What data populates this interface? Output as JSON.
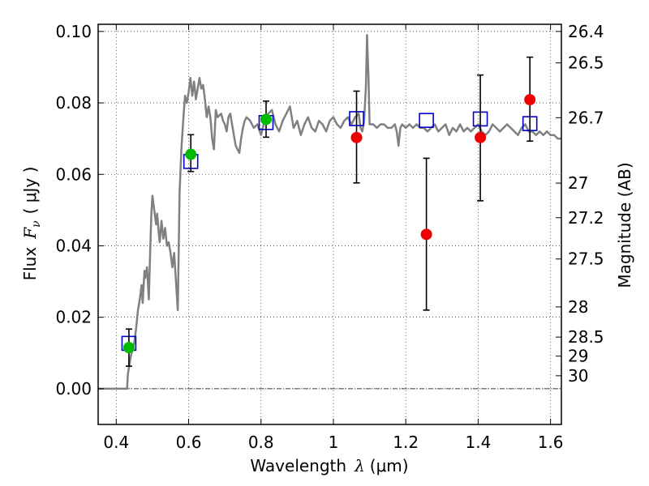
{
  "chart_data": {
    "type": "scatter",
    "xlabel": {
      "prefix": "Wavelength",
      "symbol": "λ",
      "unit": "(μm)"
    },
    "ylabel": {
      "prefix": "Flux",
      "symbol": "F",
      "subscript": "ν",
      "unit": "( μJy )"
    },
    "y2label": "Magnitude (AB)",
    "xlim": [
      0.35,
      1.63
    ],
    "ylim": [
      -0.01,
      0.102
    ],
    "xticks": [
      {
        "value": 0.4,
        "label": "0.4"
      },
      {
        "value": 0.6,
        "label": "0.6"
      },
      {
        "value": 0.8,
        "label": "0.8"
      },
      {
        "value": 1.0,
        "label": "1"
      },
      {
        "value": 1.2,
        "label": "1.2"
      },
      {
        "value": 1.4,
        "label": "1.4"
      },
      {
        "value": 1.6,
        "label": "1.6"
      }
    ],
    "yticks": [
      {
        "value": 0.0,
        "label": "0.00"
      },
      {
        "value": 0.02,
        "label": "0.02"
      },
      {
        "value": 0.04,
        "label": "0.04"
      },
      {
        "value": 0.06,
        "label": "0.06"
      },
      {
        "value": 0.08,
        "label": "0.08"
      },
      {
        "value": 0.1,
        "label": "0.10"
      }
    ],
    "mag_ticks": [
      {
        "mag": 26.4,
        "label": "26.4"
      },
      {
        "mag": 26.5,
        "label": "26.5"
      },
      {
        "mag": 26.7,
        "label": "26.7"
      },
      {
        "mag": 27.0,
        "label": "27"
      },
      {
        "mag": 27.2,
        "label": "27.2"
      },
      {
        "mag": 27.5,
        "label": "27.5"
      },
      {
        "mag": 28.0,
        "label": "28"
      },
      {
        "mag": 28.5,
        "label": "28.5"
      },
      {
        "mag": 29.0,
        "label": "29"
      },
      {
        "mag": 30.0,
        "label": "30"
      }
    ],
    "grid": true,
    "zero_line": 0.0,
    "colors": {
      "model": "#808080",
      "model_photometry": "#0000cc",
      "observed_green": "#00bb00",
      "observed_red": "#ee0000",
      "errorbar": "#000000"
    },
    "series": [
      {
        "kind": "line",
        "points": [
          [
            0.35,
            0.0
          ],
          [
            0.43,
            0.0
          ],
          [
            0.432,
            0.004
          ],
          [
            0.44,
            0.009
          ],
          [
            0.45,
            0.013
          ],
          [
            0.455,
            0.017
          ],
          [
            0.46,
            0.022
          ],
          [
            0.465,
            0.025
          ],
          [
            0.47,
            0.029
          ],
          [
            0.473,
            0.024
          ],
          [
            0.478,
            0.033
          ],
          [
            0.48,
            0.031
          ],
          [
            0.485,
            0.034
          ],
          [
            0.49,
            0.025
          ],
          [
            0.493,
            0.036
          ],
          [
            0.497,
            0.049
          ],
          [
            0.5,
            0.054
          ],
          [
            0.505,
            0.05
          ],
          [
            0.51,
            0.046
          ],
          [
            0.513,
            0.049
          ],
          [
            0.517,
            0.044
          ],
          [
            0.52,
            0.041
          ],
          [
            0.525,
            0.047
          ],
          [
            0.53,
            0.042
          ],
          [
            0.535,
            0.045
          ],
          [
            0.54,
            0.04
          ],
          [
            0.545,
            0.041
          ],
          [
            0.55,
            0.038
          ],
          [
            0.555,
            0.034
          ],
          [
            0.56,
            0.038
          ],
          [
            0.565,
            0.03
          ],
          [
            0.57,
            0.022
          ],
          [
            0.575,
            0.055
          ],
          [
            0.58,
            0.067
          ],
          [
            0.585,
            0.075
          ],
          [
            0.59,
            0.082
          ],
          [
            0.595,
            0.08
          ],
          [
            0.6,
            0.083
          ],
          [
            0.605,
            0.087
          ],
          [
            0.61,
            0.082
          ],
          [
            0.615,
            0.086
          ],
          [
            0.62,
            0.081
          ],
          [
            0.625,
            0.084
          ],
          [
            0.63,
            0.087
          ],
          [
            0.635,
            0.084
          ],
          [
            0.64,
            0.085
          ],
          [
            0.645,
            0.081
          ],
          [
            0.65,
            0.076
          ],
          [
            0.655,
            0.079
          ],
          [
            0.66,
            0.076
          ],
          [
            0.665,
            0.07
          ],
          [
            0.67,
            0.067
          ],
          [
            0.675,
            0.078
          ],
          [
            0.68,
            0.076
          ],
          [
            0.69,
            0.077
          ],
          [
            0.695,
            0.075
          ],
          [
            0.7,
            0.074
          ],
          [
            0.705,
            0.072
          ],
          [
            0.71,
            0.076
          ],
          [
            0.715,
            0.077
          ],
          [
            0.72,
            0.074
          ],
          [
            0.73,
            0.068
          ],
          [
            0.74,
            0.066
          ],
          [
            0.745,
            0.07
          ],
          [
            0.75,
            0.073
          ],
          [
            0.755,
            0.075
          ],
          [
            0.76,
            0.076
          ],
          [
            0.77,
            0.075
          ],
          [
            0.78,
            0.073
          ],
          [
            0.79,
            0.074
          ],
          [
            0.8,
            0.071
          ],
          [
            0.81,
            0.075
          ],
          [
            0.82,
            0.077
          ],
          [
            0.83,
            0.078
          ],
          [
            0.84,
            0.074
          ],
          [
            0.85,
            0.072
          ],
          [
            0.86,
            0.075
          ],
          [
            0.87,
            0.077
          ],
          [
            0.88,
            0.079
          ],
          [
            0.89,
            0.073
          ],
          [
            0.9,
            0.075
          ],
          [
            0.91,
            0.071
          ],
          [
            0.92,
            0.074
          ],
          [
            0.93,
            0.076
          ],
          [
            0.94,
            0.073
          ],
          [
            0.95,
            0.072
          ],
          [
            0.96,
            0.075
          ],
          [
            0.97,
            0.074
          ],
          [
            0.98,
            0.072
          ],
          [
            0.99,
            0.075
          ],
          [
            1.0,
            0.076
          ],
          [
            1.01,
            0.074
          ],
          [
            1.02,
            0.073
          ],
          [
            1.03,
            0.075
          ],
          [
            1.04,
            0.076
          ],
          [
            1.05,
            0.074
          ],
          [
            1.06,
            0.076
          ],
          [
            1.07,
            0.077
          ],
          [
            1.075,
            0.073
          ],
          [
            1.08,
            0.072
          ],
          [
            1.085,
            0.075
          ],
          [
            1.09,
            0.085
          ],
          [
            1.093,
            0.099
          ],
          [
            1.097,
            0.087
          ],
          [
            1.1,
            0.074
          ],
          [
            1.11,
            0.074
          ],
          [
            1.12,
            0.073
          ],
          [
            1.13,
            0.074
          ],
          [
            1.14,
            0.074
          ],
          [
            1.15,
            0.073
          ],
          [
            1.16,
            0.073
          ],
          [
            1.17,
            0.074
          ],
          [
            1.175,
            0.072
          ],
          [
            1.18,
            0.068
          ],
          [
            1.185,
            0.073
          ],
          [
            1.19,
            0.074
          ],
          [
            1.2,
            0.073
          ],
          [
            1.21,
            0.074
          ],
          [
            1.22,
            0.073
          ],
          [
            1.23,
            0.074
          ],
          [
            1.24,
            0.073
          ],
          [
            1.25,
            0.073
          ],
          [
            1.26,
            0.072
          ],
          [
            1.27,
            0.073
          ],
          [
            1.28,
            0.074
          ],
          [
            1.29,
            0.072
          ],
          [
            1.3,
            0.073
          ],
          [
            1.31,
            0.074
          ],
          [
            1.32,
            0.071
          ],
          [
            1.33,
            0.073
          ],
          [
            1.34,
            0.072
          ],
          [
            1.35,
            0.074
          ],
          [
            1.36,
            0.072
          ],
          [
            1.37,
            0.073
          ],
          [
            1.38,
            0.072
          ],
          [
            1.39,
            0.073
          ],
          [
            1.4,
            0.074
          ],
          [
            1.41,
            0.072
          ],
          [
            1.42,
            0.071
          ],
          [
            1.43,
            0.072
          ],
          [
            1.44,
            0.074
          ],
          [
            1.45,
            0.073
          ],
          [
            1.46,
            0.072
          ],
          [
            1.47,
            0.073
          ],
          [
            1.48,
            0.074
          ],
          [
            1.49,
            0.073
          ],
          [
            1.5,
            0.072
          ],
          [
            1.51,
            0.071
          ],
          [
            1.52,
            0.073
          ],
          [
            1.53,
            0.074
          ],
          [
            1.54,
            0.072
          ],
          [
            1.55,
            0.072
          ],
          [
            1.56,
            0.071
          ],
          [
            1.57,
            0.072
          ],
          [
            1.58,
            0.071
          ],
          [
            1.59,
            0.072
          ],
          [
            1.6,
            0.071
          ],
          [
            1.61,
            0.071
          ],
          [
            1.62,
            0.07
          ],
          [
            1.63,
            0.07
          ]
        ]
      },
      {
        "kind": "open-squares",
        "points": [
          [
            0.435,
            0.0127
          ],
          [
            0.606,
            0.0636
          ],
          [
            0.814,
            0.0745
          ],
          [
            1.064,
            0.0756
          ],
          [
            1.257,
            0.0751
          ],
          [
            1.406,
            0.0755
          ],
          [
            1.543,
            0.0742
          ]
        ]
      },
      {
        "kind": "filled-circles-green",
        "points": [
          {
            "x": 0.435,
            "y": 0.0115,
            "yerr_low": 0.0052,
            "yerr_high": 0.0052
          },
          {
            "x": 0.606,
            "y": 0.0656,
            "yerr_low": 0.0048,
            "yerr_high": 0.0055
          },
          {
            "x": 0.814,
            "y": 0.0754,
            "yerr_low": 0.005,
            "yerr_high": 0.0051
          }
        ]
      },
      {
        "kind": "filled-circles-red",
        "points": [
          {
            "x": 1.064,
            "y": 0.0703,
            "yerr_low": 0.0127,
            "yerr_high": 0.013
          },
          {
            "x": 1.257,
            "y": 0.0432,
            "yerr_low": 0.0212,
            "yerr_high": 0.0213
          },
          {
            "x": 1.406,
            "y": 0.0703,
            "yerr_low": 0.0177,
            "yerr_high": 0.0175
          },
          {
            "x": 1.543,
            "y": 0.0809,
            "yerr_low": 0.0116,
            "yerr_high": 0.0119
          }
        ]
      }
    ]
  }
}
